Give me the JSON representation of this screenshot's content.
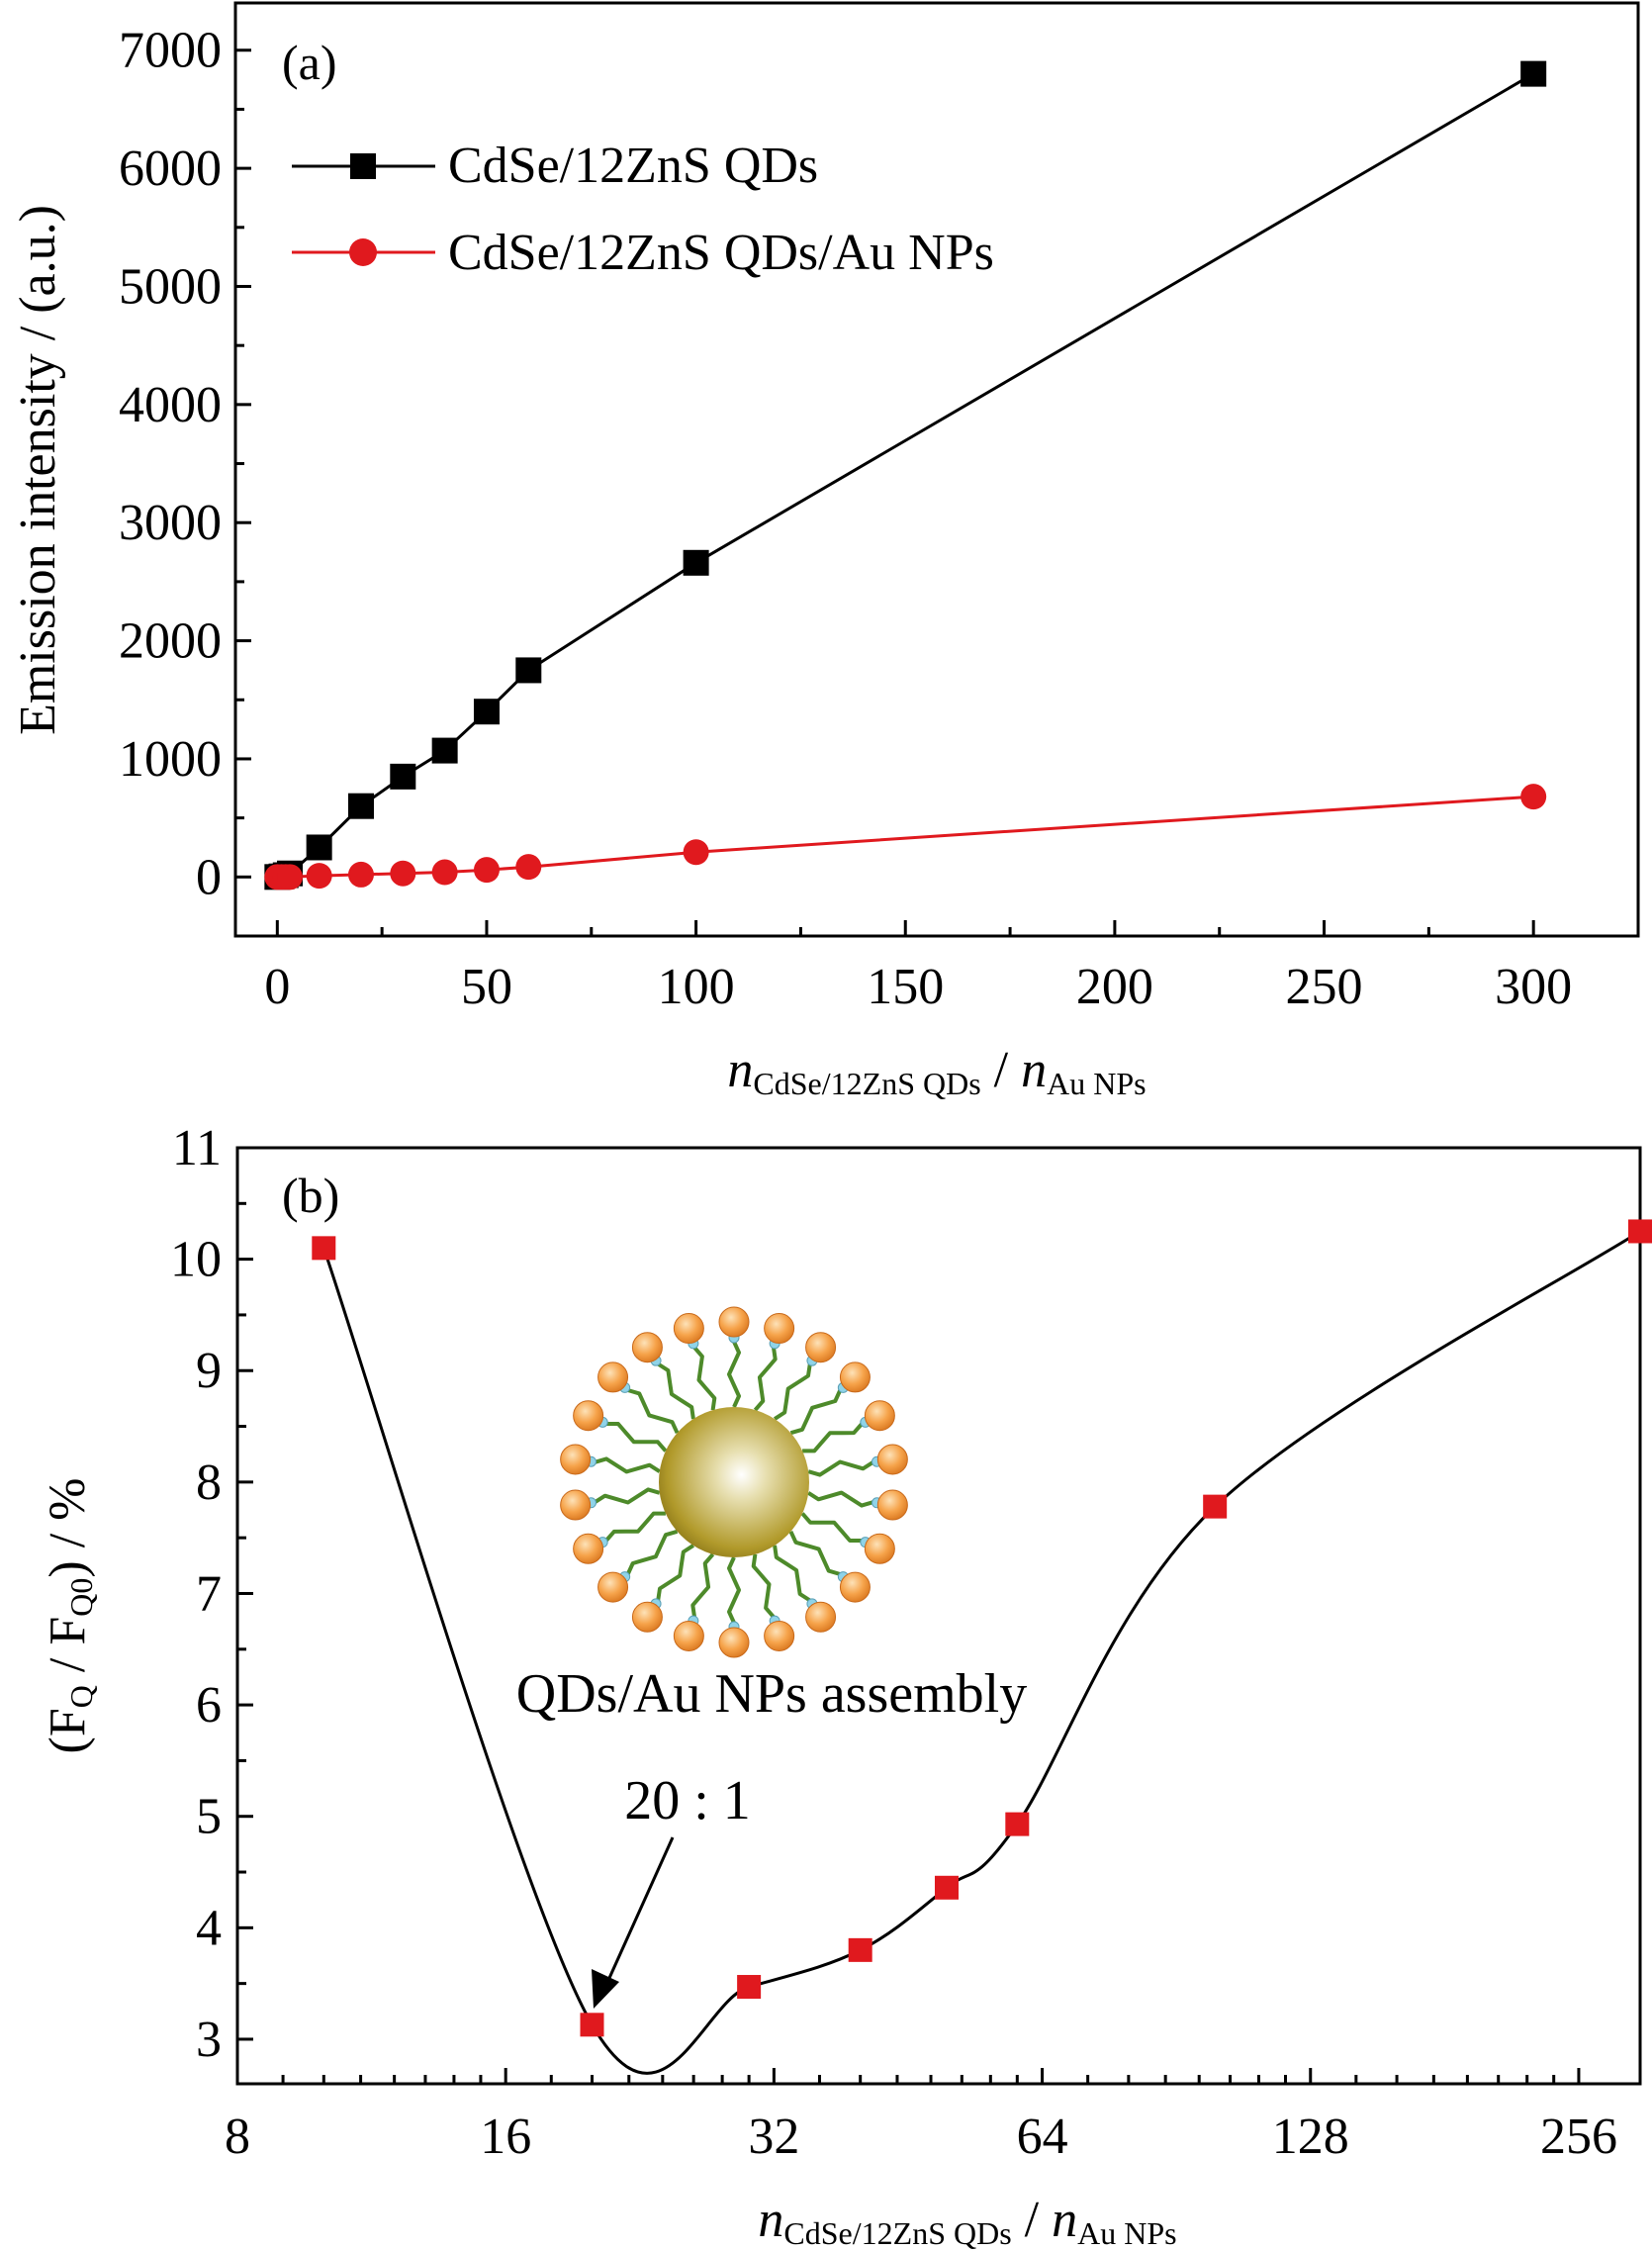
{
  "figure": {
    "accent_black": "#000000",
    "accent_red": "#e0191e",
    "inset_label": "QDs/Au NPs assembly",
    "inset_icon": "qd-au-assembly-illustration",
    "annotation_text": "20 : 1"
  },
  "chart_data": [
    {
      "type": "line",
      "panel_label": "(a)",
      "xlabel": {
        "main": "n",
        "sub1": "CdSe/12ZnS QDs",
        "sep": " / ",
        "main2": "n",
        "sub2": "Au NPs"
      },
      "ylabel": "Emission intensity / (a.u.)",
      "xlim": [
        -10,
        325
      ],
      "ylim": [
        -500,
        7400
      ],
      "xticks": [
        0,
        50,
        100,
        150,
        200,
        250,
        300
      ],
      "yticks": [
        0,
        1000,
        2000,
        3000,
        4000,
        5000,
        6000,
        7000
      ],
      "legend_position": "top-left",
      "grid": false,
      "series": [
        {
          "name": "CdSe/12ZnS QDs",
          "color": "#000000",
          "marker": "square",
          "x": [
            0,
            1,
            2,
            3,
            10,
            20,
            30,
            40,
            50,
            60,
            100,
            300
          ],
          "y": [
            0,
            5,
            15,
            30,
            250,
            600,
            850,
            1070,
            1400,
            1750,
            2660,
            6800
          ]
        },
        {
          "name": "CdSe/12ZnS QDs/Au NPs",
          "color": "#e0191e",
          "marker": "circle",
          "x": [
            0,
            1,
            2,
            3,
            10,
            20,
            30,
            40,
            50,
            60,
            100,
            300
          ],
          "y": [
            0,
            0,
            0,
            0,
            10,
            20,
            30,
            40,
            60,
            85,
            210,
            680
          ]
        }
      ]
    },
    {
      "type": "scatter",
      "panel_label": "(b)",
      "xlabel": {
        "main": "n",
        "sub1": "CdSe/12ZnS QDs",
        "sep": " / ",
        "main2": "n",
        "sub2": "Au NPs"
      },
      "ylabel": {
        "open": "(F",
        "sub1": "Q",
        "mid": " / F",
        "sub2": "Q0",
        "close": ") / %"
      },
      "xscale": "log2",
      "xlim": [
        8,
        300
      ],
      "ylim": [
        2.6,
        11
      ],
      "xticks": [
        8,
        16,
        32,
        64,
        128,
        256
      ],
      "yticks": [
        3,
        4,
        5,
        6,
        7,
        8,
        9,
        10,
        11
      ],
      "grid": false,
      "series": [
        {
          "color": "#e0191e",
          "marker": "square",
          "curve": "smooth",
          "x": [
            10,
            20,
            30,
            40,
            50,
            60,
            100,
            300
          ],
          "y": [
            10.1,
            3.13,
            3.47,
            3.8,
            4.36,
            4.93,
            7.78,
            10.25
          ]
        }
      ]
    }
  ]
}
